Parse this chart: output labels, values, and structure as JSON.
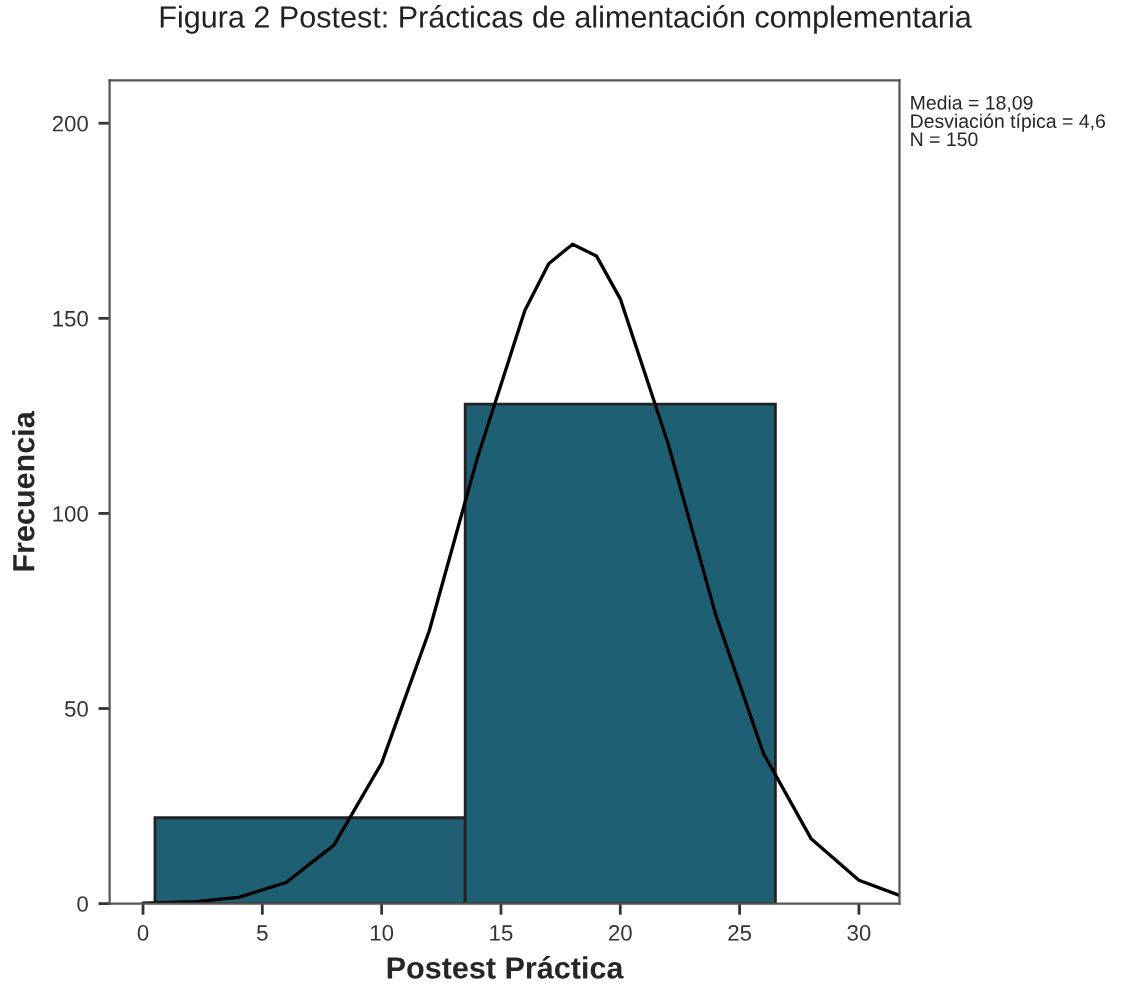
{
  "chart_data": {
    "type": "histogram",
    "title": "Figura 2 Postest: Prácticas de alimentación complementaria",
    "xlabel": "Postest Práctica",
    "ylabel": "Frecuencia",
    "bins": [
      0.5,
      13.5,
      26.5
    ],
    "values": [
      22,
      128
    ],
    "color": "#1f5f73",
    "series": [
      {
        "type": "line",
        "color": "#000000",
        "x": [
          0,
          2,
          4,
          6,
          8,
          10,
          12,
          14,
          16,
          17,
          18,
          19,
          20,
          22,
          24,
          26,
          28,
          30,
          31.7
        ],
        "values": [
          0.1,
          0.4,
          1.6,
          5.4,
          15,
          36,
          70,
          114,
          152,
          164,
          169,
          166,
          155,
          118,
          74,
          38.5,
          16.6,
          6,
          2.1
        ]
      }
    ],
    "annotations": [
      "Media = 18,09\nDesviación típica = 4,6\nN = 150"
    ],
    "xlim": [
      -1.4,
      31.7
    ],
    "xticks": [
      0,
      5,
      10,
      15,
      20,
      25,
      30
    ],
    "ylim": [
      0,
      211
    ],
    "yticks": [
      0,
      50,
      100,
      150,
      200
    ],
    "grid": false,
    "legend": false
  }
}
